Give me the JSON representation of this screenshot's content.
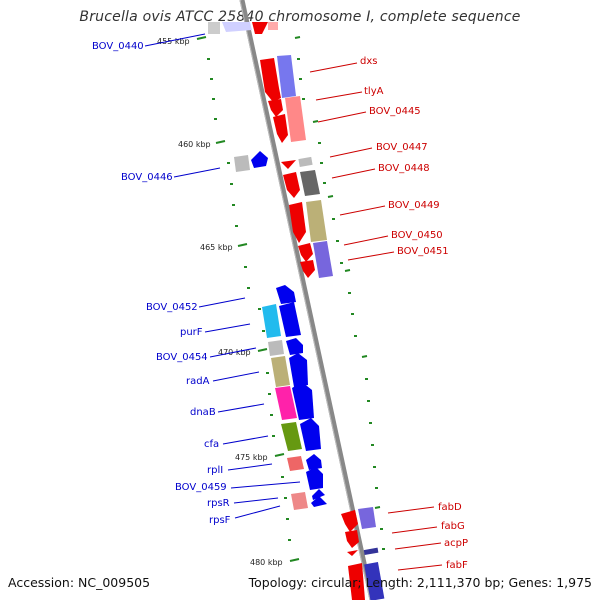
{
  "title": "Brucella ovis ATCC 25840 chromosome I, complete sequence",
  "accession": "Accession: NC_009505",
  "summary": "Topology: circular; Length: 2,111,370 bp; Genes: 1,975",
  "scale_labels": [
    "455 kbp",
    "460 kbp",
    "465 kbp",
    "470 kbp",
    "475 kbp",
    "480 kbp"
  ],
  "right_genes": [
    "dxs",
    "tlyA",
    "BOV_0445",
    "BOV_0447",
    "BOV_0448",
    "BOV_0449",
    "BOV_0450",
    "BOV_0451",
    "fabD",
    "fabG",
    "acpP",
    "fabF"
  ],
  "left_genes": [
    "BOV_0440",
    "BOV_0446",
    "BOV_0452",
    "purF",
    "BOV_0454",
    "radA",
    "dnaB",
    "cfa",
    "rplI",
    "BOV_0459",
    "rpsR",
    "rpsF"
  ],
  "colors": {
    "forward": "#0000ee",
    "reverse": "#ee0000",
    "backbone": "#888888",
    "tick": "#228822"
  }
}
